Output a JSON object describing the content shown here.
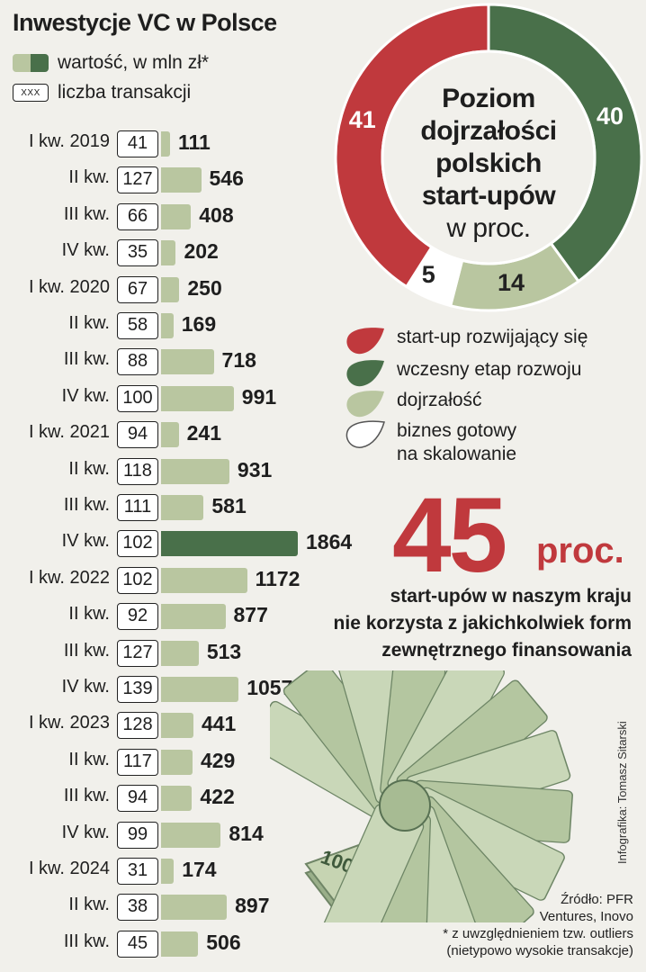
{
  "title": "Inwestycje VC w Polsce",
  "legend": {
    "value_label": "wartość, w mln zł*",
    "count_swatch": "XXX",
    "count_label": "liczba transakcji"
  },
  "colors": {
    "bar_normal": "#b9c6a0",
    "bar_highlight": "#49704a",
    "red": "#c0393d",
    "dark_green": "#49704a",
    "light_green": "#b9c6a0",
    "white": "#ffffff",
    "background": "#f1f0eb"
  },
  "chart_data": [
    {
      "type": "bar",
      "orientation": "horizontal",
      "title": "Inwestycje VC w Polsce",
      "categories": [
        "I kw. 2019",
        "II kw.",
        "III kw.",
        "IV kw.",
        "I kw. 2020",
        "II kw.",
        "III kw.",
        "IV kw.",
        "I kw. 2021",
        "II kw.",
        "III kw.",
        "IV kw.",
        "I kw. 2022",
        "II kw.",
        "III kw.",
        "IV kw.",
        "I kw. 2023",
        "II kw.",
        "III kw.",
        "IV kw.",
        "I kw. 2024",
        "II kw.",
        "III kw."
      ],
      "series": [
        {
          "name": "wartość, w mln zł*",
          "values": [
            111,
            546,
            408,
            202,
            250,
            169,
            718,
            991,
            241,
            931,
            581,
            1864,
            1172,
            877,
            513,
            1057,
            441,
            429,
            422,
            814,
            174,
            897,
            506
          ]
        },
        {
          "name": "liczba transakcji",
          "values": [
            41,
            127,
            66,
            35,
            67,
            58,
            88,
            100,
            94,
            118,
            111,
            102,
            102,
            92,
            127,
            139,
            128,
            117,
            94,
            99,
            31,
            38,
            45
          ]
        }
      ],
      "highlight_index": 11,
      "xlim": [
        0,
        1864
      ]
    },
    {
      "type": "pie",
      "title": "Poziom dojrzałości polskich start-upów",
      "unit": "w proc.",
      "slices": [
        {
          "label": "start-up rozwijający się",
          "value": 41,
          "color": "#c0393d"
        },
        {
          "label": "wczesny etap rozwoju",
          "value": 40,
          "color": "#49704a"
        },
        {
          "label": "dojrzałość",
          "value": 14,
          "color": "#b9c6a0"
        },
        {
          "label": "biznes gotowy na skalowanie",
          "value": 5,
          "color": "#ffffff"
        }
      ]
    }
  ],
  "donut_center": {
    "lines": [
      "Poziom",
      "dojrzałości",
      "polskich",
      "start-upów"
    ],
    "unit": "w proc."
  },
  "donut_legend": [
    {
      "lines": [
        "start-up rozwijający się"
      ],
      "color": "#c0393d"
    },
    {
      "lines": [
        "wczesny etap rozwoju"
      ],
      "color": "#49704a"
    },
    {
      "lines": [
        "dojrzałość"
      ],
      "color": "#b9c6a0"
    },
    {
      "lines": [
        "biznes gotowy",
        "na skalowanie"
      ],
      "color": "#ffffff"
    }
  ],
  "highlight": {
    "number": "45",
    "unit": "proc.",
    "lines": [
      "start-upów w naszym kraju",
      "nie korzysta z jakichkolwiek form",
      "zewnętrznego finansowania"
    ]
  },
  "credit": "Infografika: Tomasz Sitarski",
  "source": {
    "lines": [
      "Źródło: PFR",
      "Ventures, Inovo",
      "* z uwzględnieniem tzw. outliers",
      "(nietypowo wysokie transakcje)"
    ]
  },
  "illustration": {
    "icon": "banknotes-illustration",
    "note_text": "100"
  }
}
